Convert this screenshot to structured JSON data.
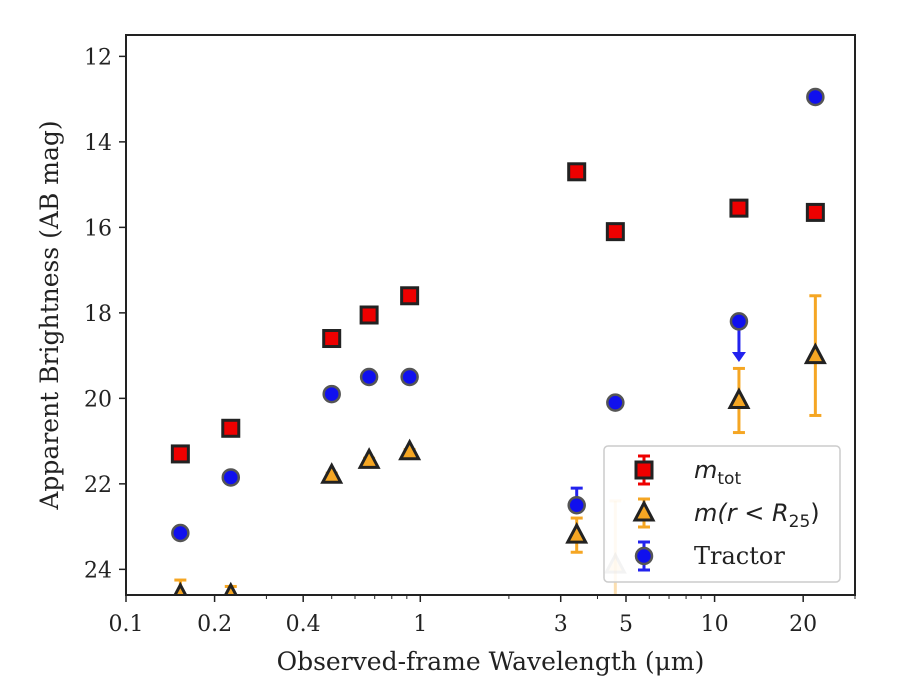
{
  "chart_data": {
    "type": "scatter",
    "xlabel": "Observed-frame Wavelength (μm)",
    "ylabel": "Apparent Brightness (AB mag)",
    "x_scale": "log",
    "xlim": [
      0.1,
      30
    ],
    "ylim": [
      24.6,
      11.5
    ],
    "y_inverted": true,
    "x_ticks": [
      {
        "value": 0.1,
        "label": "0.1"
      },
      {
        "value": 0.2,
        "label": "0.2"
      },
      {
        "value": 0.4,
        "label": "0.4"
      },
      {
        "value": 1,
        "label": "1"
      },
      {
        "value": 3,
        "label": "3"
      },
      {
        "value": 5,
        "label": "5"
      },
      {
        "value": 10,
        "label": "10"
      },
      {
        "value": 20,
        "label": "20"
      }
    ],
    "y_ticks": [
      {
        "value": 12,
        "label": "12"
      },
      {
        "value": 14,
        "label": "14"
      },
      {
        "value": 16,
        "label": "16"
      },
      {
        "value": 18,
        "label": "18"
      },
      {
        "value": 20,
        "label": "20"
      },
      {
        "value": 22,
        "label": "22"
      },
      {
        "value": 24,
        "label": "24"
      }
    ],
    "legend_position": "lower-right",
    "series": [
      {
        "name": "m_tot",
        "legend_label": {
          "symbol": "m",
          "sub": "tot"
        },
        "marker": "square",
        "color": "#ee0000",
        "edge_color": "#222222",
        "errorbar_color": "#ee0000",
        "points": [
          {
            "x": 0.153,
            "y": 21.3
          },
          {
            "x": 0.227,
            "y": 20.7
          },
          {
            "x": 0.5,
            "y": 18.6
          },
          {
            "x": 0.67,
            "y": 18.05
          },
          {
            "x": 0.92,
            "y": 17.6
          },
          {
            "x": 3.4,
            "y": 14.7
          },
          {
            "x": 4.6,
            "y": 16.1
          },
          {
            "x": 12.1,
            "y": 15.55
          },
          {
            "x": 22.0,
            "y": 15.65
          }
        ]
      },
      {
        "name": "m(r<R25)",
        "legend_label": {
          "symbol": "m(r < R",
          "sub": "25",
          "suffix": ")"
        },
        "marker": "triangle",
        "color": "#f5a623",
        "edge_color": "#222222",
        "errorbar_color": "#f5a623",
        "points": [
          {
            "x": 0.153,
            "y": 24.6,
            "err_low": 0.35
          },
          {
            "x": 0.227,
            "y": 24.6,
            "err_low": 0.2
          },
          {
            "x": 0.5,
            "y": 21.8,
            "err": 0.05
          },
          {
            "x": 0.67,
            "y": 21.45,
            "err": 0.05
          },
          {
            "x": 0.92,
            "y": 21.25,
            "err": 0.05
          },
          {
            "x": 3.4,
            "y": 23.2,
            "err": 0.4
          },
          {
            "x": 4.6,
            "y": 23.9,
            "err": 1.5,
            "faded": true
          },
          {
            "x": 12.1,
            "y": 20.05,
            "err": 0.75
          },
          {
            "x": 22.0,
            "y": 19.0,
            "err": 1.4
          }
        ]
      },
      {
        "name": "Tractor",
        "legend_label": {
          "symbol": "Tractor"
        },
        "marker": "circle",
        "color": "#1010ee",
        "edge_color": "#555555",
        "errorbar_color": "#2222ee",
        "points": [
          {
            "x": 0.153,
            "y": 23.15
          },
          {
            "x": 0.227,
            "y": 21.85
          },
          {
            "x": 0.5,
            "y": 19.9
          },
          {
            "x": 0.67,
            "y": 19.5
          },
          {
            "x": 0.92,
            "y": 19.5
          },
          {
            "x": 3.4,
            "y": 22.5,
            "err_low": 0.4
          },
          {
            "x": 4.6,
            "y": 20.1
          },
          {
            "x": 12.1,
            "y": 18.2,
            "upper_limit_to": 19.15
          },
          {
            "x": 22.0,
            "y": 12.95
          }
        ]
      }
    ]
  }
}
